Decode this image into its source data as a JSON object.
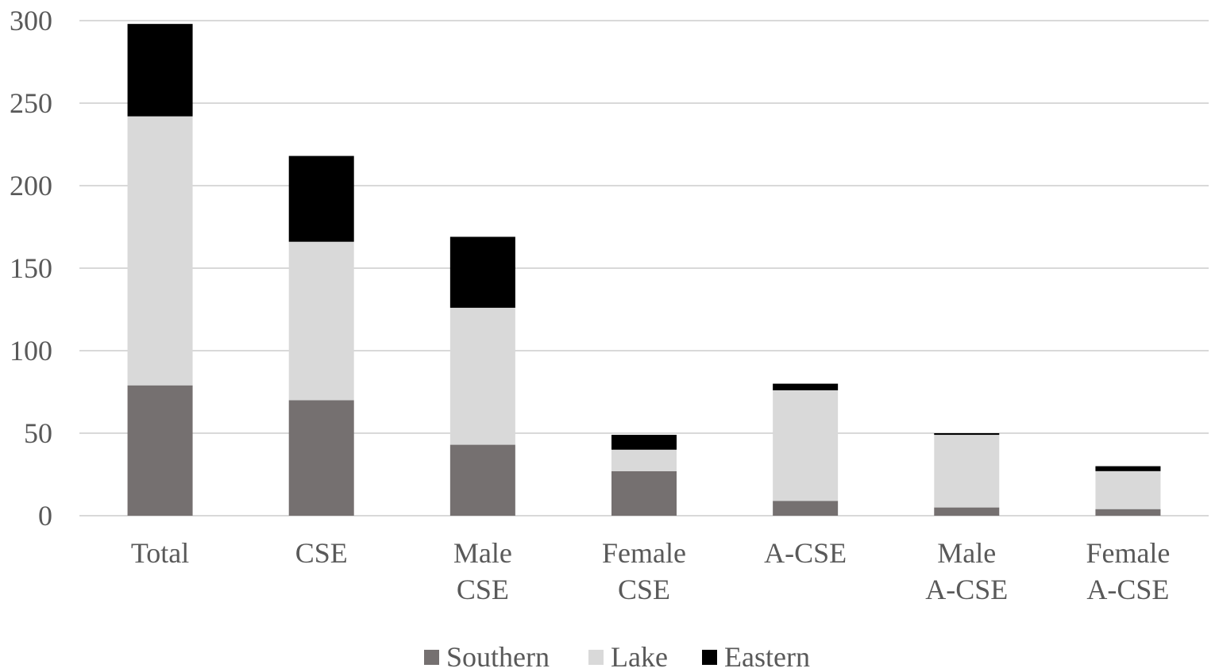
{
  "chart_data": {
    "type": "bar",
    "stacked": true,
    "title": "",
    "xlabel": "",
    "ylabel": "",
    "ylim": [
      0,
      300
    ],
    "yticks": [
      0,
      50,
      100,
      150,
      200,
      250,
      300
    ],
    "grid": true,
    "legend_position": "bottom",
    "categories": [
      [
        "Total"
      ],
      [
        "CSE"
      ],
      [
        "Male",
        "CSE"
      ],
      [
        "Female",
        "CSE"
      ],
      [
        "A-CSE"
      ],
      [
        "Male",
        "A-CSE"
      ],
      [
        "Female",
        "A-CSE"
      ]
    ],
    "series": [
      {
        "name": "Southern",
        "color": "#757070",
        "values": [
          79,
          70,
          43,
          27,
          9,
          5,
          4
        ]
      },
      {
        "name": "Lake",
        "color": "#d9d9d9",
        "values": [
          163,
          96,
          83,
          13,
          67,
          44,
          23
        ]
      },
      {
        "name": "Eastern",
        "color": "#000000",
        "values": [
          56,
          52,
          43,
          9,
          4,
          1,
          3
        ]
      }
    ]
  }
}
